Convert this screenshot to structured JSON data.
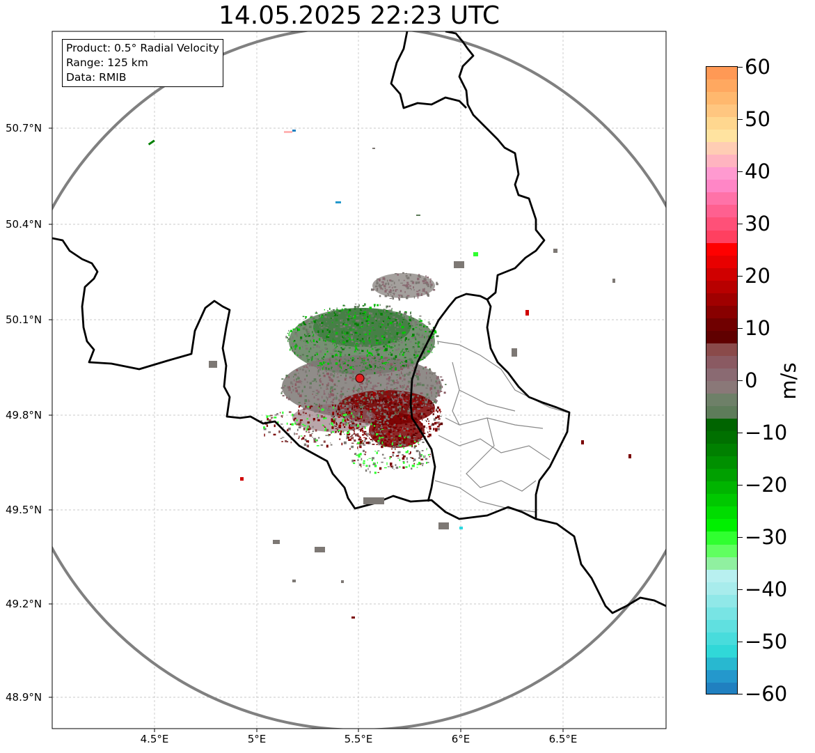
{
  "title": "14.05.2025 22:23 UTC",
  "info": {
    "product": "Product: 0.5° Radial Velocity",
    "range": "Range: 125 km",
    "data": "Data: RMIB"
  },
  "axes": {
    "lat_ticks": [
      "50.7°N",
      "50.4°N",
      "50.1°N",
      "49.8°N",
      "49.5°N",
      "49.2°N",
      "48.9°N"
    ],
    "lon_ticks": [
      "4.5°E",
      "5°E",
      "5.5°E",
      "6°E",
      "6.5°E"
    ]
  },
  "colorbar": {
    "unit": "m/s",
    "ticks": [
      "60",
      "50",
      "40",
      "30",
      "20",
      "10",
      "0",
      "−10",
      "−20",
      "−30",
      "−40",
      "−50",
      "−60"
    ],
    "range": [
      -60,
      60
    ],
    "colors_top_to_bottom": [
      "#ff9955",
      "#ffa860",
      "#ffb86e",
      "#ffc680",
      "#ffd78f",
      "#ffe3a0",
      "#ffcdb4",
      "#ffb4c0",
      "#ff9ad0",
      "#ff86c6",
      "#ff72a8",
      "#ff6090",
      "#ff5078",
      "#ff4060",
      "#ff0000",
      "#e80000",
      "#d00000",
      "#b80000",
      "#a00000",
      "#880000",
      "#700000",
      "#600000",
      "#8a4a4a",
      "#8a5a62",
      "#8a6a72",
      "#8a7878",
      "#6e8068",
      "#5e7c5a",
      "#006400",
      "#007000",
      "#008000",
      "#009000",
      "#00a000",
      "#00b400",
      "#00c800",
      "#00dc00",
      "#00f000",
      "#30ff30",
      "#60ff60",
      "#90f0a0",
      "#b8f0f0",
      "#a8ecec",
      "#90e8e8",
      "#78e4e4",
      "#60e0e0",
      "#48dcdc",
      "#30d8d8",
      "#28b8d0",
      "#2498cc",
      "#2080c0"
    ]
  },
  "map": {
    "radar_site": "radar site marker",
    "colors": {
      "green_velocity": "#2e8b2e",
      "gray_velocity": "#7d7874",
      "dark_red_velocity": "#7a0000",
      "range_ring": "#808080",
      "border": "#000000",
      "province_border": "#888888"
    }
  }
}
